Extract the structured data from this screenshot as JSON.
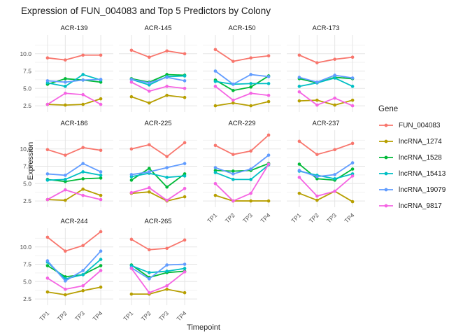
{
  "title": "Expression of FUN_004083 and Top 5 Predictors by Colony",
  "x_axis": {
    "title": "Timepoint",
    "ticks": [
      "TP1",
      "TP2",
      "TP3",
      "TP4"
    ]
  },
  "y_axis": {
    "title": "Expression",
    "tick_labels": [
      "10.0",
      "7.5",
      "5.0",
      "2.5"
    ],
    "tick_values": [
      10.0,
      7.5,
      5.0,
      2.5
    ]
  },
  "legend": {
    "title": "Gene",
    "entries": [
      {
        "label": "FUN_004083",
        "color": "#F8766D"
      },
      {
        "label": "lncRNA_1274",
        "color": "#B79F00"
      },
      {
        "label": "lncRNA_1528",
        "color": "#00BA38"
      },
      {
        "label": "lncRNA_15413",
        "color": "#00BFC4"
      },
      {
        "label": "lncRNA_19079",
        "color": "#619CFF"
      },
      {
        "label": "lncRNA_9817",
        "color": "#F564E3"
      }
    ]
  },
  "chart_data": {
    "type": "line",
    "facet_by": "Colony",
    "x_categories": [
      "TP1",
      "TP2",
      "TP3",
      "TP4"
    ],
    "ylim": [
      1.6,
      12.7
    ],
    "major_gridlines": [
      2.5,
      5.0,
      7.5,
      10.0
    ],
    "minor_gridlines": [
      3.75,
      6.25,
      8.75,
      11.25
    ],
    "grid": true,
    "legend_position": "right",
    "facets": [
      {
        "name": "ACR-139",
        "series": [
          {
            "gene": "FUN_004083",
            "values": [
              9.4,
              9.1,
              9.8,
              9.8
            ]
          },
          {
            "gene": "lncRNA_1274",
            "values": [
              2.7,
              2.6,
              2.7,
              3.5
            ]
          },
          {
            "gene": "lncRNA_1528",
            "values": [
              5.6,
              6.4,
              6.2,
              5.9
            ]
          },
          {
            "gene": "lncRNA_15413",
            "values": [
              5.8,
              5.3,
              7.0,
              6.2
            ]
          },
          {
            "gene": "lncRNA_19079",
            "values": [
              6.1,
              5.9,
              6.2,
              6.3
            ]
          },
          {
            "gene": "lncRNA_9817",
            "values": [
              2.7,
              4.3,
              4.1,
              2.7
            ]
          }
        ]
      },
      {
        "name": "ACR-145",
        "series": [
          {
            "gene": "FUN_004083",
            "values": [
              10.5,
              9.5,
              10.4,
              10.0
            ]
          },
          {
            "gene": "lncRNA_1274",
            "values": [
              3.8,
              2.9,
              4.0,
              3.7
            ]
          },
          {
            "gene": "lncRNA_1528",
            "values": [
              6.4,
              5.9,
              7.0,
              6.9
            ]
          },
          {
            "gene": "lncRNA_15413",
            "values": [
              6.3,
              5.5,
              6.7,
              6.8
            ]
          },
          {
            "gene": "lncRNA_19079",
            "values": [
              6.3,
              5.8,
              6.6,
              6.1
            ]
          },
          {
            "gene": "lncRNA_9817",
            "values": [
              5.9,
              4.6,
              5.3,
              5.0
            ]
          }
        ]
      },
      {
        "name": "ACR-150",
        "series": [
          {
            "gene": "FUN_004083",
            "values": [
              10.6,
              8.9,
              9.4,
              9.7
            ]
          },
          {
            "gene": "lncRNA_1274",
            "values": [
              2.5,
              2.9,
              2.5,
              3.1
            ]
          },
          {
            "gene": "lncRNA_1528",
            "values": [
              6.2,
              4.7,
              5.2,
              6.8
            ]
          },
          {
            "gene": "lncRNA_15413",
            "values": [
              6.0,
              5.6,
              5.7,
              5.7
            ]
          },
          {
            "gene": "lncRNA_19079",
            "values": [
              7.5,
              5.6,
              7.0,
              6.7
            ]
          },
          {
            "gene": "lncRNA_9817",
            "values": [
              5.3,
              3.3,
              4.3,
              4.0
            ]
          }
        ]
      },
      {
        "name": "ACR-173",
        "series": [
          {
            "gene": "FUN_004083",
            "values": [
              9.8,
              8.7,
              9.2,
              9.5
            ]
          },
          {
            "gene": "lncRNA_1274",
            "values": [
              3.2,
              3.3,
              2.6,
              3.3
            ]
          },
          {
            "gene": "lncRNA_1528",
            "values": [
              6.4,
              5.8,
              6.6,
              6.4
            ]
          },
          {
            "gene": "lncRNA_15413",
            "values": [
              5.3,
              5.8,
              6.5,
              5.3
            ]
          },
          {
            "gene": "lncRNA_19079",
            "values": [
              6.6,
              5.9,
              6.9,
              6.5
            ]
          },
          {
            "gene": "lncRNA_9817",
            "values": [
              4.5,
              2.6,
              3.6,
              2.5
            ]
          }
        ]
      },
      {
        "name": "ACR-186",
        "series": [
          {
            "gene": "FUN_004083",
            "values": [
              9.9,
              9.1,
              10.2,
              9.8
            ]
          },
          {
            "gene": "lncRNA_1274",
            "values": [
              2.7,
              2.6,
              4.2,
              3.3
            ]
          },
          {
            "gene": "lncRNA_1528",
            "values": [
              5.6,
              5.3,
              5.7,
              5.8
            ]
          },
          {
            "gene": "lncRNA_15413",
            "values": [
              5.5,
              5.6,
              6.7,
              6.2
            ]
          },
          {
            "gene": "lncRNA_19079",
            "values": [
              6.4,
              6.2,
              7.9,
              6.7
            ]
          },
          {
            "gene": "lncRNA_9817",
            "values": [
              2.7,
              4.1,
              3.3,
              2.7
            ]
          }
        ]
      },
      {
        "name": "ACR-225",
        "series": [
          {
            "gene": "FUN_004083",
            "values": [
              10.0,
              10.6,
              8.9,
              10.9
            ]
          },
          {
            "gene": "lncRNA_1274",
            "values": [
              3.6,
              3.8,
              2.5,
              3.1
            ]
          },
          {
            "gene": "lncRNA_1528",
            "values": [
              5.5,
              7.2,
              4.5,
              6.4
            ]
          },
          {
            "gene": "lncRNA_15413",
            "values": [
              6.0,
              6.5,
              5.9,
              6.1
            ]
          },
          {
            "gene": "lncRNA_19079",
            "values": [
              6.3,
              6.7,
              7.3,
              7.9
            ]
          },
          {
            "gene": "lncRNA_9817",
            "values": [
              3.7,
              4.4,
              2.6,
              4.3
            ]
          }
        ]
      },
      {
        "name": "ACR-229",
        "series": [
          {
            "gene": "FUN_004083",
            "values": [
              10.5,
              9.2,
              9.7,
              12.0
            ]
          },
          {
            "gene": "lncRNA_1274",
            "values": [
              3.3,
              2.5,
              2.5,
              2.5
            ]
          },
          {
            "gene": "lncRNA_1528",
            "values": [
              6.9,
              6.8,
              6.9,
              7.9
            ]
          },
          {
            "gene": "lncRNA_15413",
            "values": [
              6.6,
              5.6,
              5.6,
              7.7
            ]
          },
          {
            "gene": "lncRNA_19079",
            "values": [
              7.3,
              6.4,
              7.1,
              9.1
            ]
          },
          {
            "gene": "lncRNA_9817",
            "values": [
              5.0,
              2.5,
              3.6,
              7.8
            ]
          }
        ]
      },
      {
        "name": "ACR-237",
        "series": [
          {
            "gene": "FUN_004083",
            "values": [
              11.1,
              9.2,
              9.9,
              10.8
            ]
          },
          {
            "gene": "lncRNA_1274",
            "values": [
              3.6,
              2.6,
              3.9,
              2.4
            ]
          },
          {
            "gene": "lncRNA_1528",
            "values": [
              7.8,
              5.7,
              5.5,
              7.1
            ]
          },
          {
            "gene": "lncRNA_15413",
            "values": [
              6.8,
              6.2,
              5.7,
              6.4
            ]
          },
          {
            "gene": "lncRNA_19079",
            "values": [
              6.9,
              6.0,
              6.3,
              8.0
            ]
          },
          {
            "gene": "lncRNA_9817",
            "values": [
              5.9,
              3.2,
              3.9,
              6.1
            ]
          }
        ]
      },
      {
        "name": "ACR-244",
        "series": [
          {
            "gene": "FUN_004083",
            "values": [
              11.4,
              9.4,
              10.2,
              12.2
            ]
          },
          {
            "gene": "lncRNA_1274",
            "values": [
              3.5,
              3.1,
              3.7,
              4.2
            ]
          },
          {
            "gene": "lncRNA_1528",
            "values": [
              7.3,
              5.7,
              6.0,
              7.3
            ]
          },
          {
            "gene": "lncRNA_15413",
            "values": [
              7.8,
              5.4,
              6.0,
              8.2
            ]
          },
          {
            "gene": "lncRNA_19079",
            "values": [
              8.0,
              5.1,
              6.6,
              9.4
            ]
          },
          {
            "gene": "lncRNA_9817",
            "values": [
              5.5,
              3.9,
              4.4,
              6.6
            ]
          }
        ]
      },
      {
        "name": "ACR-265",
        "series": [
          {
            "gene": "FUN_004083",
            "values": [
              11.1,
              9.6,
              9.8,
              11.0
            ]
          },
          {
            "gene": "lncRNA_1274",
            "values": [
              3.2,
              3.2,
              3.9,
              3.4
            ]
          },
          {
            "gene": "lncRNA_1528",
            "values": [
              7.4,
              5.6,
              6.3,
              6.5
            ]
          },
          {
            "gene": "lncRNA_15413",
            "values": [
              7.3,
              6.3,
              6.5,
              6.9
            ]
          },
          {
            "gene": "lncRNA_19079",
            "values": [
              7.0,
              5.4,
              7.4,
              7.5
            ]
          },
          {
            "gene": "lncRNA_9817",
            "values": [
              6.9,
              3.4,
              4.4,
              6.4
            ]
          }
        ]
      }
    ]
  }
}
